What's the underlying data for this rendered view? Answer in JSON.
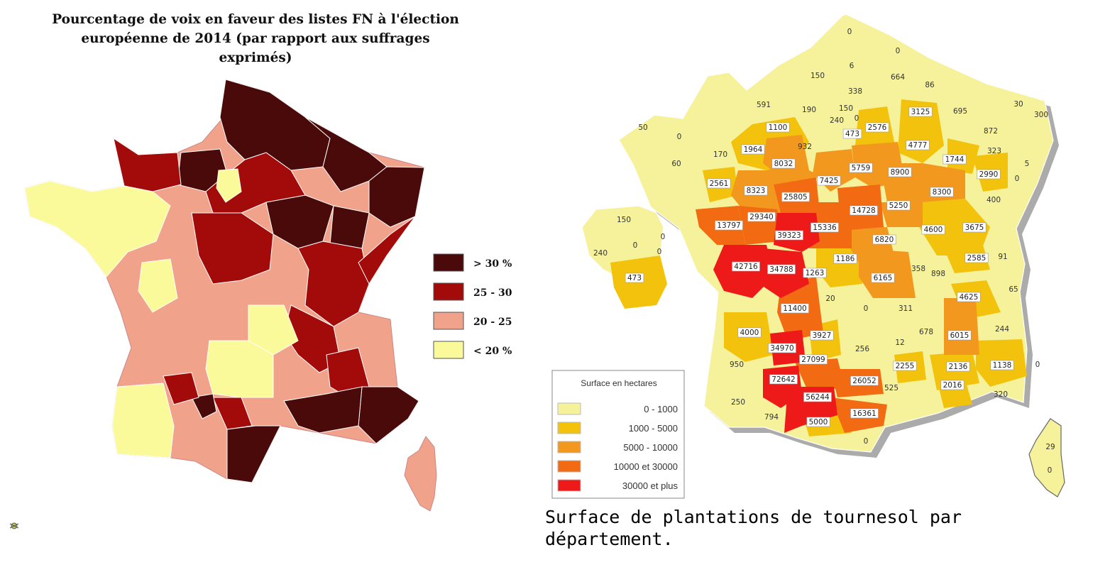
{
  "left_panel": {
    "title_line1": "Pourcentage de voix en faveur des listes FN à l'élection",
    "title_line2": "européenne de 2014 (par rapport aux suffrages exprimés)",
    "legend": [
      {
        "label": "> 30 %",
        "color": "#4a0a0a"
      },
      {
        "label": "25 - 30",
        "color": "#a30a0a"
      },
      {
        "label": "20 - 25",
        "color": "#f0a28a"
      },
      {
        "label": "< 20 %",
        "color": "#fafa9a"
      }
    ]
  },
  "right_panel": {
    "legend_title": "Surface en hectares",
    "legend": [
      {
        "label": "0 - 1000",
        "color": "#f6f29c"
      },
      {
        "label": "1000 - 5000",
        "color": "#f2c20c"
      },
      {
        "label": "5000 - 10000",
        "color": "#f3981e"
      },
      {
        "label": "10000 et 30000",
        "color": "#f26b12"
      },
      {
        "label": "30000 et plus",
        "color": "#ee1a1a"
      }
    ],
    "department_values": [
      "0",
      "0",
      "6",
      "664",
      "86",
      "150",
      "338",
      "591",
      "190",
      "150",
      "240",
      "0",
      "473",
      "2576",
      "3125",
      "695",
      "30",
      "300",
      "872",
      "323",
      "5",
      "50",
      "0",
      "1100",
      "932",
      "4777",
      "1744",
      "2990",
      "60",
      "170",
      "1964",
      "8032",
      "7425",
      "5759",
      "8900",
      "8300",
      "0",
      "400",
      "2561",
      "8323",
      "25805",
      "14728",
      "5250",
      "13797",
      "29340",
      "39323",
      "15336",
      "6820",
      "4600",
      "3675",
      "150",
      "0",
      "0",
      "240",
      "0",
      "473",
      "42716",
      "34788",
      "1263",
      "1186",
      "6165",
      "358",
      "898",
      "2585",
      "91",
      "11400",
      "20",
      "0",
      "311",
      "4625",
      "65",
      "4000",
      "3927",
      "12",
      "678",
      "6015",
      "244",
      "34970",
      "256",
      "27099",
      "2255",
      "2136",
      "1138",
      "0",
      "950",
      "72642",
      "26052",
      "2016",
      "320",
      "525",
      "250",
      "56244",
      "794",
      "16361",
      "5000",
      "0",
      "29",
      "0"
    ],
    "caption_line1": "Surface de plantations de tournesol par",
    "caption_line2": "département."
  }
}
